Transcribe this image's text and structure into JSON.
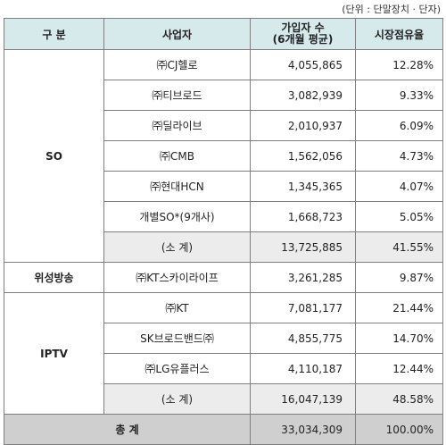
{
  "unit_note": "(단위 : 단말장치 · 단자)",
  "headers": {
    "category": "구 분",
    "operator": "사업자",
    "subscribers_line1": "가입자 수",
    "subscribers_line2": "(6개월 평균)",
    "share": "시장점유율"
  },
  "groups": [
    {
      "category": "SO",
      "rows": [
        {
          "name": "㈜CJ헬로",
          "subscribers": "4,055,865",
          "share": "12.28%"
        },
        {
          "name": "㈜티브로드",
          "subscribers": "3,082,939",
          "share": "9.33%"
        },
        {
          "name": "㈜딜라이브",
          "subscribers": "2,010,937",
          "share": "6.09%"
        },
        {
          "name": "㈜CMB",
          "subscribers": "1,562,056",
          "share": "4.73%"
        },
        {
          "name": "㈜현대HCN",
          "subscribers": "1,345,365",
          "share": "4.07%"
        },
        {
          "name": "개별SO*(9개사)",
          "subscribers": "1,668,723",
          "share": "5.05%"
        }
      ],
      "subtotal": {
        "name": "(소 계)",
        "subscribers": "13,725,885",
        "share": "41.55%"
      }
    },
    {
      "category": "위성방송",
      "rows": [
        {
          "name": "㈜KT스카이라이프",
          "subscribers": "3,261,285",
          "share": "9.87%"
        }
      ]
    },
    {
      "category": "IPTV",
      "rows": [
        {
          "name": "㈜KT",
          "subscribers": "7,081,177",
          "share": "21.44%"
        },
        {
          "name": "SK브로드밴드㈜",
          "subscribers": "4,855,775",
          "share": "14.70%"
        },
        {
          "name": "㈜LG유플러스",
          "subscribers": "4,110,187",
          "share": "12.44%"
        }
      ],
      "subtotal": {
        "name": "(소 계)",
        "subscribers": "16,047,139",
        "share": "48.58%"
      }
    }
  ],
  "total": {
    "label": "총 계",
    "subscribers": "33,034,309",
    "share": "100.00%"
  }
}
